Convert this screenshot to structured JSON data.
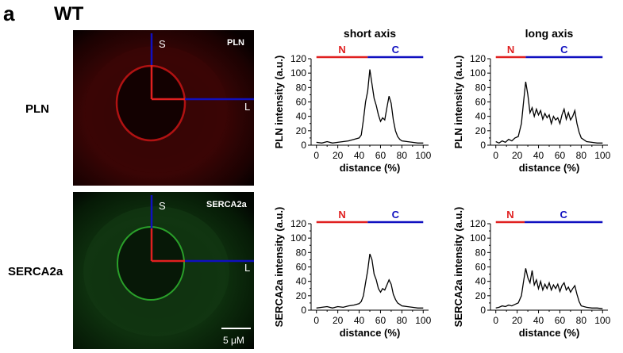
{
  "panel_letter": "a",
  "title": "WT",
  "rows": [
    {
      "label": "PLN",
      "image_tag": "PLN",
      "axis_s": "S",
      "axis_l": "L"
    },
    {
      "label": "SERCA2a",
      "image_tag": "SERCA2a",
      "axis_s": "S",
      "axis_l": "L",
      "scale_bar": "5 μM"
    }
  ],
  "colors": {
    "nucleus": "#e02020",
    "cytoplasm": "#1010c0",
    "trace": "#000000",
    "pln_stain": "#b01010",
    "serca_stain": "#20a020"
  },
  "chart_data": [
    {
      "type": "line",
      "title": "short axis",
      "xlabel": "distance (%)",
      "ylabel": "PLN intensity (a.u.)",
      "xlim": [
        -5,
        105
      ],
      "ylim": [
        0,
        120
      ],
      "xticks": [
        0,
        20,
        40,
        60,
        80,
        100
      ],
      "yticks": [
        0,
        10,
        20,
        30,
        40,
        50,
        60,
        70,
        80,
        90,
        100,
        110,
        120
      ],
      "regions": [
        {
          "label": "N",
          "from": 0,
          "to": 48,
          "color": "#e02020"
        },
        {
          "label": "C",
          "from": 48,
          "to": 100,
          "color": "#1010c0"
        }
      ],
      "series": [
        {
          "x": [
            0,
            5,
            10,
            15,
            20,
            25,
            30,
            35,
            40,
            42,
            44,
            46,
            48,
            50,
            52,
            54,
            56,
            58,
            60,
            62,
            64,
            66,
            68,
            70,
            72,
            74,
            76,
            78,
            80,
            85,
            90,
            95,
            100
          ],
          "y": [
            4,
            3,
            5,
            3,
            4,
            5,
            6,
            8,
            10,
            14,
            35,
            60,
            75,
            105,
            85,
            65,
            55,
            42,
            33,
            38,
            35,
            52,
            68,
            58,
            35,
            20,
            12,
            8,
            6,
            5,
            4,
            3,
            3
          ]
        }
      ]
    },
    {
      "type": "line",
      "title": "long axis",
      "xlabel": "distance (%)",
      "ylabel": "PLN intensity (a.u.)",
      "xlim": [
        -5,
        105
      ],
      "ylim": [
        0,
        120
      ],
      "xticks": [
        0,
        20,
        40,
        60,
        80,
        100
      ],
      "yticks": [
        0,
        10,
        20,
        30,
        40,
        50,
        60,
        70,
        80,
        90,
        100,
        110,
        120
      ],
      "regions": [
        {
          "label": "N",
          "from": 0,
          "to": 28,
          "color": "#e02020"
        },
        {
          "label": "C",
          "from": 28,
          "to": 100,
          "color": "#1010c0"
        }
      ],
      "series": [
        {
          "x": [
            0,
            3,
            6,
            9,
            12,
            15,
            18,
            21,
            24,
            26,
            28,
            30,
            32,
            34,
            36,
            38,
            40,
            42,
            44,
            46,
            48,
            50,
            52,
            54,
            56,
            58,
            60,
            62,
            64,
            66,
            68,
            70,
            72,
            74,
            76,
            78,
            80,
            85,
            90,
            95,
            100
          ],
          "y": [
            5,
            3,
            6,
            4,
            8,
            6,
            10,
            12,
            30,
            60,
            88,
            70,
            45,
            52,
            40,
            50,
            42,
            48,
            36,
            44,
            38,
            42,
            30,
            40,
            35,
            38,
            30,
            42,
            50,
            36,
            45,
            35,
            40,
            48,
            30,
            18,
            10,
            5,
            4,
            3,
            3
          ]
        }
      ]
    },
    {
      "type": "line",
      "title": "",
      "xlabel": "distance (%)",
      "ylabel": "SERCA2a intensity (a.u.)",
      "xlim": [
        -5,
        105
      ],
      "ylim": [
        0,
        120
      ],
      "xticks": [
        0,
        20,
        40,
        60,
        80,
        100
      ],
      "yticks": [
        0,
        10,
        20,
        30,
        40,
        50,
        60,
        70,
        80,
        90,
        100,
        110,
        120
      ],
      "regions": [
        {
          "label": "N",
          "from": 0,
          "to": 48,
          "color": "#e02020"
        },
        {
          "label": "C",
          "from": 48,
          "to": 100,
          "color": "#1010c0"
        }
      ],
      "series": [
        {
          "x": [
            0,
            5,
            10,
            15,
            20,
            25,
            30,
            35,
            40,
            42,
            44,
            46,
            48,
            50,
            52,
            54,
            56,
            58,
            60,
            62,
            64,
            66,
            68,
            70,
            72,
            74,
            76,
            78,
            80,
            85,
            90,
            95,
            100
          ],
          "y": [
            3,
            4,
            5,
            3,
            5,
            4,
            6,
            7,
            9,
            12,
            20,
            38,
            55,
            78,
            70,
            50,
            42,
            30,
            25,
            30,
            28,
            35,
            42,
            36,
            22,
            15,
            10,
            8,
            6,
            5,
            4,
            3,
            3
          ]
        }
      ]
    },
    {
      "type": "line",
      "title": "",
      "xlabel": "distance (%)",
      "ylabel": "SERCA2a intensity (a.u.)",
      "xlim": [
        -5,
        105
      ],
      "ylim": [
        0,
        120
      ],
      "xticks": [
        0,
        20,
        40,
        60,
        80,
        100
      ],
      "yticks": [
        0,
        10,
        20,
        30,
        40,
        50,
        60,
        70,
        80,
        90,
        100,
        110,
        120
      ],
      "regions": [
        {
          "label": "N",
          "from": 0,
          "to": 27,
          "color": "#e02020"
        },
        {
          "label": "C",
          "from": 27,
          "to": 100,
          "color": "#1010c0"
        }
      ],
      "series": [
        {
          "x": [
            0,
            3,
            6,
            9,
            12,
            15,
            18,
            21,
            24,
            26,
            28,
            30,
            32,
            34,
            36,
            38,
            40,
            42,
            44,
            46,
            48,
            50,
            52,
            54,
            56,
            58,
            60,
            62,
            64,
            66,
            68,
            70,
            72,
            74,
            76,
            78,
            80,
            85,
            90,
            95,
            100
          ],
          "y": [
            3,
            4,
            6,
            5,
            7,
            6,
            8,
            10,
            20,
            40,
            58,
            45,
            38,
            55,
            35,
            42,
            30,
            40,
            28,
            36,
            30,
            38,
            28,
            35,
            30,
            36,
            26,
            34,
            38,
            28,
            32,
            25,
            30,
            34,
            22,
            12,
            6,
            4,
            3,
            3,
            2
          ]
        }
      ]
    }
  ]
}
